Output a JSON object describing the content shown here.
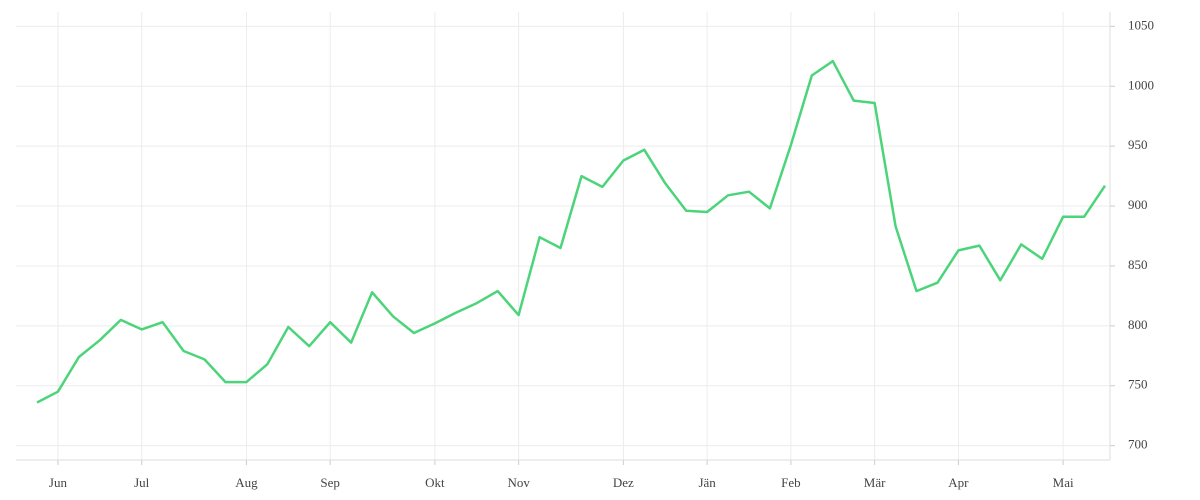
{
  "chart_data": {
    "type": "line",
    "categories": [
      null,
      "Jun",
      null,
      null,
      null,
      "Jul",
      null,
      null,
      null,
      null,
      "Aug",
      null,
      null,
      null,
      "Sep",
      null,
      null,
      null,
      null,
      "Okt",
      null,
      null,
      null,
      "Nov",
      null,
      null,
      null,
      null,
      "Dez",
      null,
      null,
      null,
      "Jän",
      null,
      null,
      null,
      "Feb",
      null,
      null,
      null,
      "Mär",
      null,
      null,
      null,
      "Apr",
      null,
      null,
      null,
      null,
      "Mai",
      null,
      null
    ],
    "series": [
      {
        "color": "#4cd47a",
        "values": [
          736,
          745,
          774,
          788,
          805,
          797,
          803,
          779,
          772,
          753,
          753,
          768,
          799,
          783,
          803,
          786,
          828,
          808,
          794,
          802,
          811,
          819,
          829,
          809,
          874,
          865,
          925,
          916,
          938,
          947,
          919,
          896,
          895,
          909,
          912,
          898,
          951,
          1009,
          1021,
          988,
          986,
          883,
          829,
          836,
          863,
          867,
          838,
          868,
          856,
          891,
          891,
          917
        ]
      }
    ],
    "ylim": [
      688,
      1062
    ],
    "yticks": [
      700,
      750,
      800,
      850,
      900,
      950,
      1000,
      1050
    ],
    "grid": true,
    "y_axis_side": "right"
  }
}
